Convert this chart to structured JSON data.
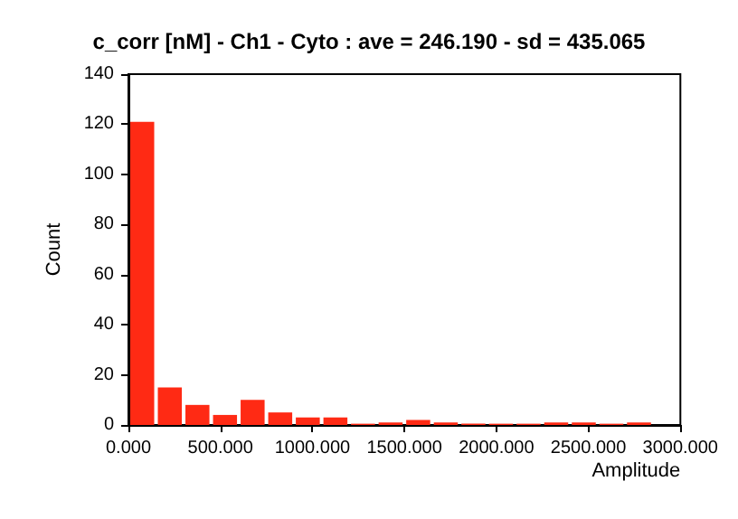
{
  "chart_data": {
    "type": "histogram",
    "title": "c_corr [nM] - Ch1 - Cyto : ave = 246.190 - sd = 435.065",
    "xlabel": "Amplitude",
    "ylabel": "Count",
    "bins": [
      0,
      150,
      300,
      450,
      600,
      750,
      900,
      1050,
      1200,
      1350,
      1500,
      1650,
      1800,
      1950,
      2100,
      2250,
      2400,
      2550,
      2700,
      2850
    ],
    "values": [
      121,
      15,
      8,
      4,
      10,
      5,
      3,
      3,
      0.5,
      1,
      2,
      1,
      0.5,
      0.5,
      0.5,
      1,
      1,
      0.5,
      1
    ],
    "color": "#ff2a14",
    "xlim": [
      0,
      3000
    ],
    "xticks": [
      {
        "value": 0,
        "label": "0.000"
      },
      {
        "value": 500,
        "label": "500.000"
      },
      {
        "value": 1000,
        "label": "1000.000"
      },
      {
        "value": 1500,
        "label": "1500.000"
      },
      {
        "value": 2000,
        "label": "2000.000"
      },
      {
        "value": 2500,
        "label": "2500.000"
      },
      {
        "value": 3000,
        "label": "3000.000"
      }
    ],
    "ylim": [
      0,
      140
    ],
    "yticks": [
      0,
      20,
      40,
      60,
      80,
      100,
      120,
      140
    ],
    "grid": false
  }
}
